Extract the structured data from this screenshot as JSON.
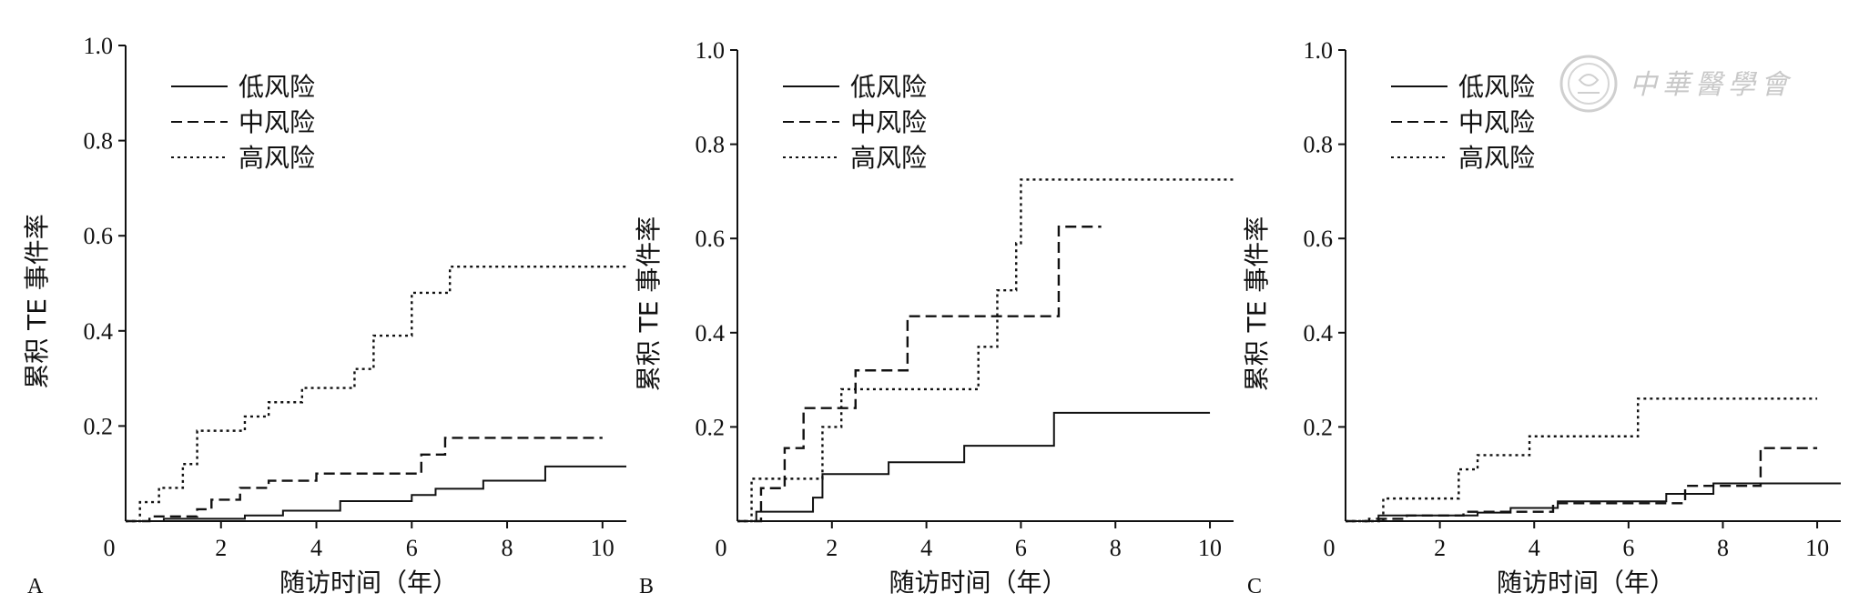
{
  "y_axis_label": "累积 TE 事件率",
  "x_axis_label": "随访时间（年）",
  "watermark_text": "中華醫學會",
  "chart_data": [
    {
      "type": "line",
      "panel_label": "A",
      "xlabel": "随访时间（年）",
      "ylabel": "累积 TE 事件率",
      "xlim": [
        0,
        10.5
      ],
      "ylim": [
        0,
        1.0
      ],
      "x_ticks": [
        "0",
        "2",
        "4",
        "6",
        "8",
        "10"
      ],
      "y_ticks": [
        "0.2",
        "0.4",
        "0.6",
        "0.8",
        "1.0"
      ],
      "legend_position": "top-left",
      "series": [
        {
          "name": "低风险",
          "style": "solid",
          "x": [
            0,
            0.8,
            2.5,
            3.3,
            4.5,
            6.0,
            6.5,
            7.5,
            8.8,
            10.5
          ],
          "y": [
            0,
            0.005,
            0.012,
            0.022,
            0.042,
            0.055,
            0.068,
            0.085,
            0.115,
            0.115
          ]
        },
        {
          "name": "中风险",
          "style": "dashed",
          "x": [
            0,
            0.5,
            1.5,
            1.8,
            2.4,
            3.0,
            4.0,
            6.2,
            6.7,
            10.0
          ],
          "y": [
            0,
            0.01,
            0.025,
            0.045,
            0.07,
            0.085,
            0.1,
            0.14,
            0.175,
            0.175
          ]
        },
        {
          "name": "高风险",
          "style": "dotted",
          "x": [
            0,
            0.3,
            0.7,
            1.2,
            1.5,
            2.5,
            3.0,
            3.7,
            4.8,
            5.2,
            6.0,
            6.8,
            10.5
          ],
          "y": [
            0,
            0.04,
            0.07,
            0.12,
            0.19,
            0.22,
            0.25,
            0.28,
            0.32,
            0.39,
            0.48,
            0.535,
            0.535
          ]
        }
      ]
    },
    {
      "type": "line",
      "panel_label": "B",
      "xlabel": "随访时间（年）",
      "ylabel": "累积 TE 事件率",
      "xlim": [
        0,
        10.5
      ],
      "ylim": [
        0,
        1.0
      ],
      "x_ticks": [
        "0",
        "2",
        "4",
        "6",
        "8",
        "10"
      ],
      "y_ticks": [
        "0.2",
        "0.4",
        "0.6",
        "0.8",
        "1.0"
      ],
      "legend_position": "top-left",
      "series": [
        {
          "name": "低风险",
          "style": "solid",
          "x": [
            0,
            0.4,
            1.6,
            1.8,
            3.2,
            4.8,
            6.7,
            10.0
          ],
          "y": [
            0,
            0.02,
            0.05,
            0.1,
            0.125,
            0.16,
            0.23,
            0.23
          ]
        },
        {
          "name": "中风险",
          "style": "dashed",
          "x": [
            0,
            0.5,
            1.0,
            1.4,
            2.5,
            3.6,
            6.8,
            7.7
          ],
          "y": [
            0,
            0.07,
            0.155,
            0.24,
            0.32,
            0.435,
            0.625,
            0.625
          ]
        },
        {
          "name": "高风险",
          "style": "dotted",
          "x": [
            0,
            0.3,
            1.8,
            2.2,
            5.1,
            5.5,
            5.9,
            6.0,
            10.5
          ],
          "y": [
            0,
            0.09,
            0.2,
            0.28,
            0.37,
            0.49,
            0.59,
            0.725,
            0.725
          ]
        }
      ]
    },
    {
      "type": "line",
      "panel_label": "C",
      "xlabel": "随访时间（年）",
      "ylabel": "累积 TE 事件率",
      "xlim": [
        0,
        10.5
      ],
      "ylim": [
        0,
        1.0
      ],
      "x_ticks": [
        "0",
        "2",
        "4",
        "6",
        "8",
        "10"
      ],
      "y_ticks": [
        "0.2",
        "0.4",
        "0.6",
        "0.8",
        "1.0"
      ],
      "legend_position": "top-left",
      "series": [
        {
          "name": "低风险",
          "style": "solid",
          "x": [
            0,
            0.7,
            2.8,
            3.5,
            4.5,
            6.8,
            7.8,
            10.5
          ],
          "y": [
            0,
            0.012,
            0.018,
            0.028,
            0.042,
            0.058,
            0.08,
            0.08
          ]
        },
        {
          "name": "中风险",
          "style": "dashed",
          "x": [
            0,
            0.5,
            1.3,
            2.5,
            4.4,
            7.2,
            8.8,
            10.0
          ],
          "y": [
            0,
            0.005,
            0.012,
            0.02,
            0.038,
            0.075,
            0.155,
            0.155
          ]
        },
        {
          "name": "高风险",
          "style": "dotted",
          "x": [
            0,
            0.8,
            2.4,
            2.8,
            3.9,
            6.2,
            10.0
          ],
          "y": [
            0,
            0.048,
            0.11,
            0.14,
            0.18,
            0.26,
            0.26
          ]
        }
      ]
    }
  ]
}
